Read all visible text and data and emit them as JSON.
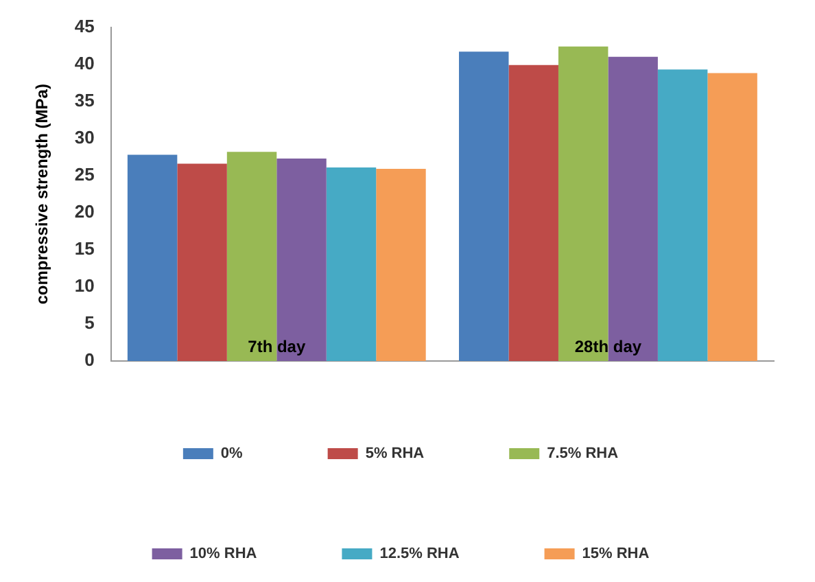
{
  "chart_data": {
    "type": "bar",
    "ylabel": "compressive strength (MPa)",
    "categories": [
      "7th day",
      "28th day"
    ],
    "series": [
      {
        "name": "0%",
        "color": "#4a7ebb",
        "values": [
          27.8,
          41.7
        ]
      },
      {
        "name": "5% RHA",
        "color": "#be4b48",
        "values": [
          26.6,
          39.9
        ]
      },
      {
        "name": "7.5% RHA",
        "color": "#98b954",
        "values": [
          28.2,
          42.4
        ]
      },
      {
        "name": "10% RHA",
        "color": "#7d5fa0",
        "values": [
          27.3,
          41.0
        ]
      },
      {
        "name": "12.5% RHA",
        "color": "#46aac5",
        "values": [
          26.1,
          39.3
        ]
      },
      {
        "name": "15% RHA",
        "color": "#f59d56",
        "values": [
          25.9,
          38.8
        ]
      }
    ],
    "ylim": [
      0,
      45
    ],
    "yticks": [
      0,
      5,
      10,
      15,
      20,
      25,
      30,
      35,
      40,
      45
    ],
    "grid": false,
    "legend": "bottom"
  }
}
